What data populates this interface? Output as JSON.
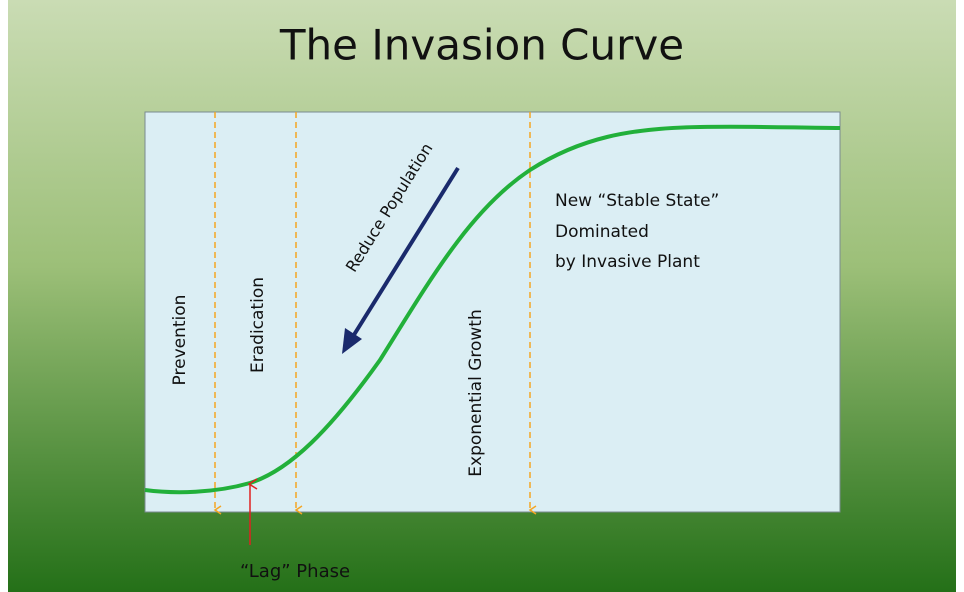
{
  "title": "The Invasion Curve",
  "phases": [
    "Prevention",
    "Eradication",
    "Exponential Growth"
  ],
  "annotations": {
    "reduce_population": "Reduce Population",
    "stable_state": [
      "New “Stable State”",
      "Dominated",
      "by Invasive Plant"
    ],
    "lag_phase": "“Lag” Phase"
  }
}
